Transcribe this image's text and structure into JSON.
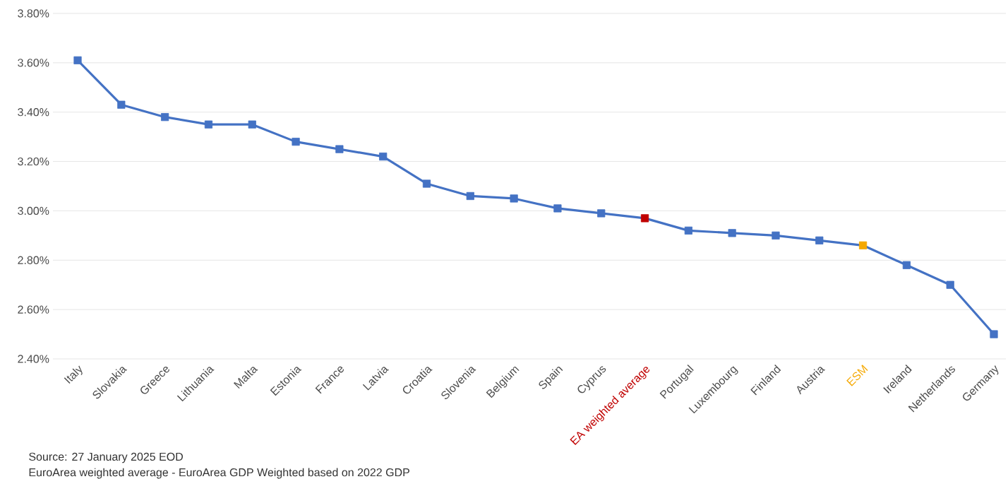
{
  "chart_data": {
    "type": "line",
    "categories": [
      "Italy",
      "Slovakia",
      "Greece",
      "Lithuania",
      "Malta",
      "Estonia",
      "France",
      "Latvia",
      "Croatia",
      "Slovenia",
      "Belgium",
      "Spain",
      "Cyprus",
      "EA weighted average",
      "Portugal",
      "Luxembourg",
      "Finland",
      "Austria",
      "ESM",
      "Ireland",
      "Netherlands",
      "Germany"
    ],
    "series": [
      {
        "color": "#4472c4",
        "values": [
          3.61,
          3.43,
          3.38,
          3.35,
          3.35,
          3.28,
          3.25,
          3.22,
          3.11,
          3.06,
          3.05,
          3.01,
          2.99,
          2.97,
          2.92,
          2.91,
          2.9,
          2.88,
          2.86,
          2.78,
          2.7,
          2.5
        ],
        "colors": [
          "#4472c4",
          "#4472c4",
          "#4472c4",
          "#4472c4",
          "#4472c4",
          "#4472c4",
          "#4472c4",
          "#4472c4",
          "#4472c4",
          "#4472c4",
          "#4472c4",
          "#4472c4",
          "#4472c4",
          "#c00000",
          "#4472c4",
          "#4472c4",
          "#4472c4",
          "#4472c4",
          "#f5a800",
          "#4472c4",
          "#4472c4",
          "#4472c4"
        ]
      }
    ],
    "ylim": [
      2.4,
      3.8
    ],
    "yticks": [
      {
        "value": 2.4,
        "label": "2.40%"
      },
      {
        "value": 2.6,
        "label": "2.60%"
      },
      {
        "value": 2.8,
        "label": "2.80%"
      },
      {
        "value": 3.0,
        "label": "3.00%"
      },
      {
        "value": 3.2,
        "label": "3.20%"
      },
      {
        "value": 3.4,
        "label": "3.40%"
      },
      {
        "value": 3.6,
        "label": "3.60%"
      },
      {
        "value": 3.8,
        "label": "3.80%"
      }
    ],
    "grid": "y",
    "marker": "square",
    "line_style": "solid",
    "annotations": [
      "Source: 27 January 2025 EOD",
      "EuroArea weighted average - EuroArea GDP Weighted based on 2022 GDP"
    ]
  }
}
